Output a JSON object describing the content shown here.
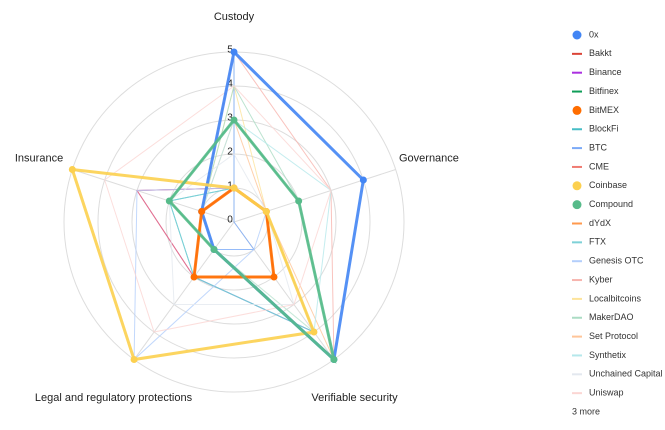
{
  "chart_data": {
    "type": "radar",
    "categories": [
      "Custody",
      "Governance",
      "Verifiable security",
      "Legal and regulatory protections",
      "Insurance"
    ],
    "rlim": [
      0,
      5
    ],
    "rticks": [
      0,
      1,
      2,
      3,
      4,
      5
    ],
    "grid": true,
    "legend": "right",
    "series": [
      {
        "name": "0x",
        "color": "#4285f4",
        "points": true,
        "values": [
          5,
          4,
          5,
          1,
          1
        ]
      },
      {
        "name": "Bakkt",
        "color": "#db4437",
        "values": [
          1,
          1,
          2,
          2,
          1
        ]
      },
      {
        "name": "Binance",
        "color": "#ab30e0",
        "values": [
          1,
          1,
          4,
          2,
          3
        ]
      },
      {
        "name": "Bitfinex",
        "color": "#0f9d58",
        "values": [
          3,
          2,
          5,
          1,
          2
        ]
      },
      {
        "name": "BitMEX",
        "color": "#ff6d00",
        "points": true,
        "values": [
          1,
          1,
          2,
          2,
          1
        ]
      },
      {
        "name": "BlockFi",
        "color": "#46bdc6",
        "values": [
          1,
          1,
          4,
          2,
          2
        ]
      },
      {
        "name": "BTC",
        "color": "#7baaf7",
        "values": [
          5,
          0,
          1,
          1,
          1
        ]
      },
      {
        "name": "CME",
        "color": "#f07b72",
        "values": [
          1,
          1,
          2,
          2,
          3
        ]
      },
      {
        "name": "Coinbase",
        "color": "#fcd04f",
        "points": true,
        "values": [
          1,
          1,
          4,
          5,
          5
        ]
      },
      {
        "name": "Compound",
        "color": "#57bb8a",
        "points": true,
        "values": [
          3,
          2,
          5,
          1,
          2
        ]
      },
      {
        "name": "dYdX",
        "color": "#ff994d",
        "values": [
          1,
          1,
          2,
          2,
          1
        ]
      },
      {
        "name": "FTX",
        "color": "#7ed1d7",
        "values": [
          1,
          1,
          4,
          2,
          2
        ]
      },
      {
        "name": "Genesis OTC",
        "color": "#b3cefb",
        "values": [
          1,
          1,
          1,
          5,
          3
        ]
      },
      {
        "name": "Kyber",
        "color": "#f7b4ae",
        "values": [
          5,
          3,
          5,
          1,
          1
        ]
      },
      {
        "name": "Localbitcoins",
        "color": "#fde49b",
        "values": [
          4,
          1,
          4,
          1,
          1
        ]
      },
      {
        "name": "MakerDAO",
        "color": "#abdcc4",
        "values": [
          4,
          2,
          5,
          1,
          1
        ]
      },
      {
        "name": "Set Protocol",
        "color": "#ffc599",
        "values": [
          3,
          1,
          5,
          1,
          1
        ]
      },
      {
        "name": "Synthetix",
        "color": "#b5e8eb",
        "values": [
          3,
          3,
          4,
          1,
          1
        ]
      },
      {
        "name": "Unchained Capital",
        "color": "#e3e8ef",
        "values": [
          2,
          1,
          3,
          3,
          2
        ]
      },
      {
        "name": "Uniswap",
        "color": "#fbd6d3",
        "values": [
          4,
          3,
          3,
          4,
          4
        ]
      }
    ],
    "legend_more": "3 more"
  }
}
